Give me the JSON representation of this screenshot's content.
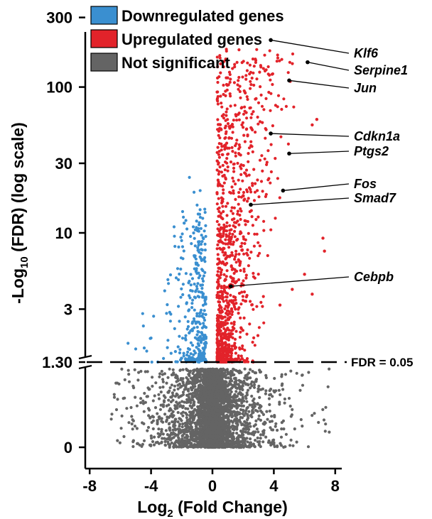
{
  "chart_data": {
    "type": "scatter",
    "title": "",
    "xlabel": "Log2 (Fold Change)",
    "xlabel_parts": {
      "base": "Log",
      "sub": "2",
      "rest": " (Fold Change)"
    },
    "ylabel": "-Log10 (FDR) (log scale)",
    "ylabel_parts": {
      "base": "-Log",
      "sub": "10",
      "rest": " (FDR) (log scale)"
    },
    "xlim": [
      -8.5,
      8.5
    ],
    "x_ticks": [
      {
        "value": -8,
        "label": "-8"
      },
      {
        "value": -4,
        "label": "-4"
      },
      {
        "value": 0,
        "label": "0"
      },
      {
        "value": 4,
        "label": "4"
      },
      {
        "value": 8,
        "label": "8"
      }
    ],
    "y_scale": "log, broken axis below 1.30",
    "y_ticks_upper": [
      {
        "value": 1.3,
        "label": "1.30"
      },
      {
        "value": 3,
        "label": "3"
      },
      {
        "value": 10,
        "label": "10"
      },
      {
        "value": 30,
        "label": "30"
      },
      {
        "value": 100,
        "label": "100"
      },
      {
        "value": 300,
        "label": "300"
      }
    ],
    "y_ticks_lower": [
      {
        "value": 0,
        "label": "0"
      }
    ],
    "threshold": {
      "value": 1.3,
      "label": "FDR = 0.05"
    },
    "grid": false,
    "legend_position": "top-left",
    "series": [
      {
        "name": "Downregulated genes",
        "color": "#3a8fd0",
        "approx_count": 330,
        "x_range": [
          -6,
          -0.4
        ],
        "y_range": [
          1.3,
          24
        ]
      },
      {
        "name": "Upregulated genes",
        "color": "#e2232a",
        "approx_count": 1100,
        "x_range": [
          0.3,
          7.3
        ],
        "y_range": [
          1.3,
          220
        ]
      },
      {
        "name": "Not significant",
        "color": "#646464",
        "approx_count": 3800,
        "x_range": [
          -6.5,
          7.6
        ],
        "y_range": [
          0,
          1.3
        ]
      }
    ],
    "annotations": [
      {
        "gene": "Klf6",
        "x": 3.8,
        "y": 210
      },
      {
        "gene": "Serpine1",
        "x": 6.2,
        "y": 148
      },
      {
        "gene": "Jun",
        "x": 5.0,
        "y": 111
      },
      {
        "gene": "Cdkn1a",
        "x": 3.8,
        "y": 48
      },
      {
        "gene": "Ptgs2",
        "x": 5.0,
        "y": 35
      },
      {
        "gene": "Fos",
        "x": 4.6,
        "y": 19.5
      },
      {
        "gene": "Smad7",
        "x": 2.5,
        "y": 15.6
      },
      {
        "gene": "Cebpb",
        "x": 1.2,
        "y": 4.3
      }
    ]
  }
}
